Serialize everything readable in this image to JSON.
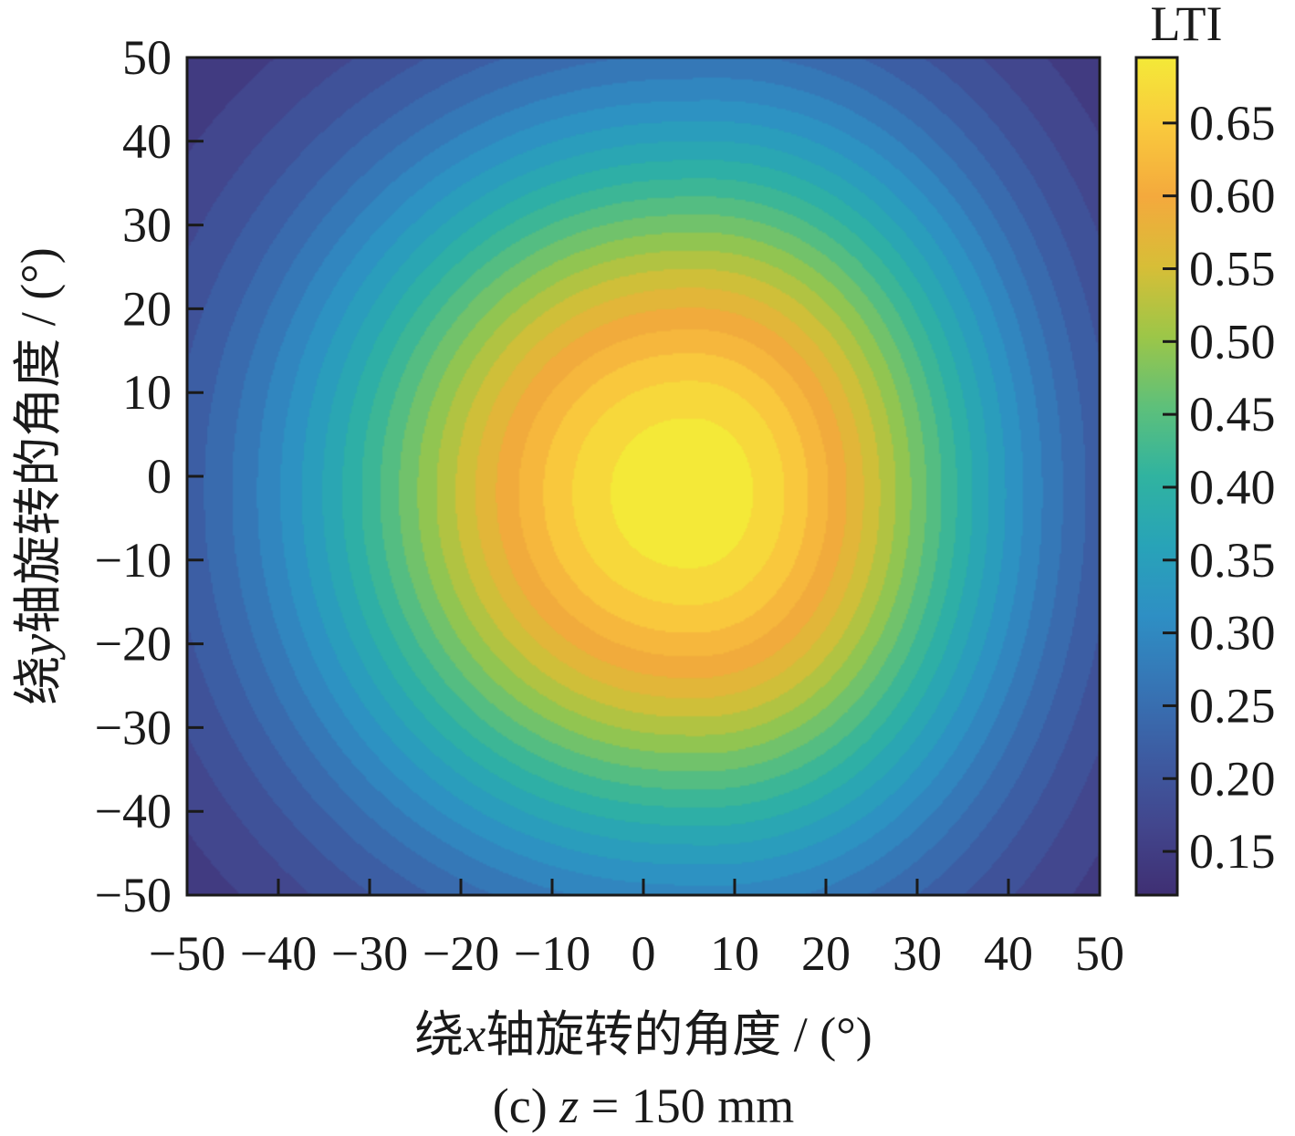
{
  "chart_data": {
    "type": "heatmap",
    "caption": {
      "prefix": "(c) ",
      "var": "z",
      "rest": " = 150 mm"
    },
    "xlabel": {
      "prefix": "绕",
      "var": "x",
      "suffix": "轴旋转的角度 / (°)"
    },
    "ylabel": {
      "prefix": "绕",
      "var": "y",
      "suffix": "轴旋转的角度 / (°)"
    },
    "xlim": [
      -50,
      50
    ],
    "ylim": [
      -50,
      50
    ],
    "x_ticks": [
      -50,
      -40,
      -30,
      -20,
      -10,
      0,
      10,
      20,
      30,
      40,
      50
    ],
    "y_ticks": [
      -50,
      -40,
      -30,
      -20,
      -10,
      0,
      10,
      20,
      30,
      40,
      50
    ],
    "colorbar": {
      "title": "LTI",
      "range": [
        0.12,
        0.695
      ],
      "ticks": [
        "0.15",
        "0.20",
        "0.25",
        "0.30",
        "0.35",
        "0.40",
        "0.45",
        "0.50",
        "0.55",
        "0.60",
        "0.65"
      ],
      "colormap": [
        "#3f2f73",
        "#42468d",
        "#3d5ca2",
        "#3675b5",
        "#2e8fc4",
        "#28a3b8",
        "#30b3a0",
        "#5ec07a",
        "#9cc648",
        "#d7be37",
        "#f4a93d",
        "#f9c93d",
        "#f4e938"
      ]
    },
    "peak": {
      "x": 5,
      "y": -2,
      "value": 0.69
    },
    "min_value": 0.12,
    "grid": false,
    "contour_levels": 24
  }
}
